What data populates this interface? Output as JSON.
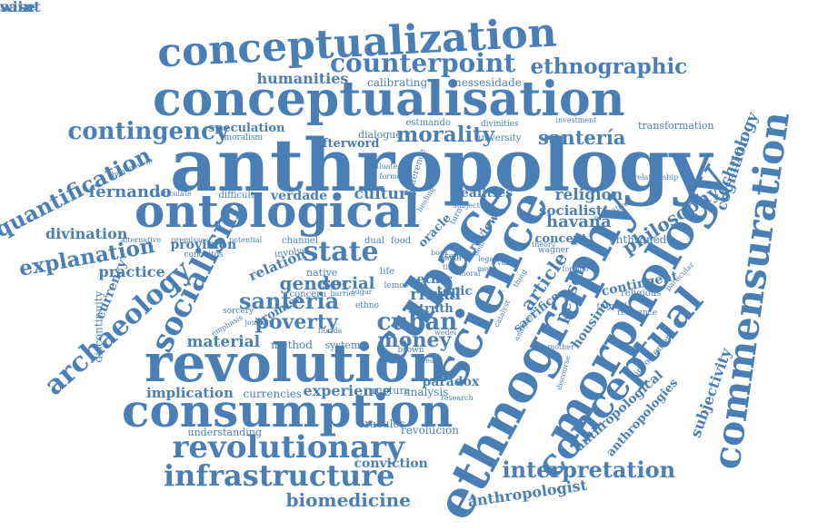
{
  "color": "#4a7fb5",
  "words": [
    "anthropology",
    "conceptualisation",
    "conceptualization",
    "counterpoint",
    "ethnographic",
    "humanities",
    "calibrating",
    "nessesidade",
    "contingency",
    "speculation",
    "moralism",
    "dialogue",
    "estmando",
    "divinities",
    "afterword",
    "morality",
    "university",
    "santería",
    "investment",
    "transformation",
    "ontological",
    "quantification",
    "phenomenon",
    "fernando",
    "articulate",
    "difficulty",
    "verdade",
    "culture",
    "realities",
    "religion",
    "havana",
    "socialist",
    "relationship",
    "philosophy",
    "technology",
    "cognition",
    "divination",
    "alternative",
    "premissas",
    "potential",
    "channel",
    "explanation",
    "provision",
    "conceitos",
    "involve",
    "relation",
    "state",
    "dual",
    "food",
    "concept",
    "wagner",
    "enthroned",
    "practice",
    "currency",
    "native",
    "life",
    "gender",
    "social",
    "ethic",
    "topic",
    "truth",
    "ritual",
    "article",
    "person",
    "contingent",
    "religious",
    "turmoil",
    "reference",
    "foreign",
    "particular",
    "archaeology",
    "socialism",
    "santeria",
    "promise",
    "journey",
    "concern",
    "barrier",
    "sugar",
    "cuban",
    "sacrifice",
    "housing",
    "poverty",
    "emphasis",
    "material",
    "method",
    "system",
    "money",
    "brown",
    "create",
    "mother",
    "discontinuity",
    "revolution",
    "science",
    "cubace",
    "ethnography",
    "morphology",
    "commensuration",
    "conceptual",
    "involvement",
    "subjectivity",
    "anthropological",
    "anthropologies",
    "implication",
    "currencies",
    "experience",
    "rupture",
    "analysis",
    "paradox",
    "research",
    "consumption",
    "understanding",
    "oraculos",
    "revolución",
    "revolutionary",
    "conviction",
    "infrastructure",
    "interpretation",
    "biomedicine",
    "anthropologist",
    "sorcery",
    "evaluate",
    "formed",
    "difference",
    "oracle",
    "review",
    "turn",
    "subject",
    "healing",
    "theory",
    "normative",
    "catalyst",
    "analytical",
    "discourse",
    "lemos",
    "ethno",
    "sense",
    "moral",
    "wedel",
    "florida",
    "deal",
    "legal",
    "myth",
    "time",
    "book",
    "mean",
    "thing",
    "value",
    "wise",
    "saint"
  ]
}
